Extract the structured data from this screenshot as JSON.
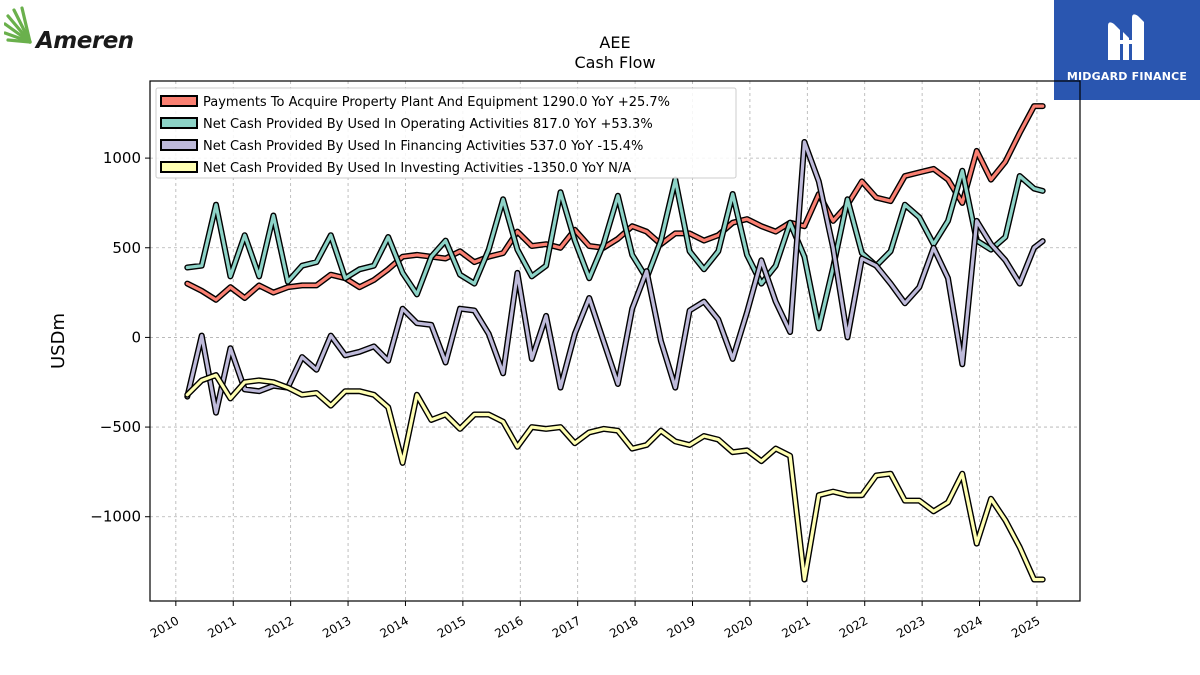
{
  "logos": {
    "left_text": "Ameren",
    "right_text": "MIDGARD FINANCE"
  },
  "chart_data": {
    "type": "line",
    "title": "AEE",
    "subtitle": "Cash Flow",
    "ylabel": "USDm",
    "xlabel": "",
    "ylim": [
      -1470,
      1430
    ],
    "xlim": [
      2009.55,
      2025.75
    ],
    "yticks": [
      -1000,
      -500,
      0,
      500,
      1000
    ],
    "xticks": [
      2010,
      2011,
      2012,
      2013,
      2014,
      2015,
      2016,
      2017,
      2018,
      2019,
      2020,
      2021,
      2022,
      2023,
      2024,
      2025
    ],
    "grid": true,
    "legend_position": "top-left",
    "x": [
      2010.2,
      2010.45,
      2010.7,
      2010.95,
      2011.2,
      2011.45,
      2011.7,
      2011.95,
      2012.2,
      2012.45,
      2012.7,
      2012.95,
      2013.2,
      2013.45,
      2013.7,
      2013.95,
      2014.2,
      2014.45,
      2014.7,
      2014.95,
      2015.2,
      2015.45,
      2015.7,
      2015.95,
      2016.2,
      2016.45,
      2016.7,
      2016.95,
      2017.2,
      2017.45,
      2017.7,
      2017.95,
      2018.2,
      2018.45,
      2018.7,
      2018.95,
      2019.2,
      2019.45,
      2019.7,
      2019.95,
      2020.2,
      2020.45,
      2020.7,
      2020.95,
      2021.2,
      2021.45,
      2021.7,
      2021.95,
      2022.2,
      2022.45,
      2022.7,
      2022.95,
      2023.2,
      2023.45,
      2023.7,
      2023.95,
      2024.2,
      2024.45,
      2024.7,
      2024.95,
      2025.1
    ],
    "series": [
      {
        "name": "Payments To Acquire Property Plant And Equipment",
        "legend": "Payments To Acquire Property Plant And Equipment  1290.0 YoY +25.7%",
        "color": "#fa8072",
        "values": [
          300,
          260,
          210,
          280,
          220,
          290,
          250,
          280,
          290,
          290,
          350,
          330,
          280,
          320,
          380,
          450,
          460,
          450,
          440,
          480,
          420,
          450,
          470,
          590,
          510,
          520,
          500,
          600,
          510,
          500,
          550,
          620,
          590,
          520,
          580,
          580,
          540,
          570,
          640,
          660,
          620,
          590,
          640,
          620,
          800,
          650,
          740,
          870,
          780,
          760,
          900,
          920,
          940,
          880,
          750,
          1040,
          880,
          980,
          1140,
          1290,
          1290
        ]
      },
      {
        "name": "Net Cash Provided By Used In Operating Activities",
        "legend": "Net Cash Provided By Used In Operating Activities  817.0 YoY +53.3%",
        "color": "#8dd3c7",
        "values": [
          390,
          400,
          740,
          340,
          570,
          340,
          680,
          310,
          400,
          420,
          570,
          330,
          380,
          400,
          560,
          360,
          240,
          450,
          540,
          350,
          300,
          490,
          770,
          490,
          340,
          400,
          810,
          540,
          330,
          520,
          790,
          460,
          330,
          540,
          880,
          480,
          380,
          480,
          800,
          460,
          300,
          400,
          640,
          450,
          50,
          390,
          770,
          470,
          400,
          480,
          740,
          670,
          520,
          650,
          930,
          540,
          490,
          560,
          900,
          830,
          817
        ]
      },
      {
        "name": "Net Cash Provided By Used In Financing Activities",
        "legend": "Net Cash Provided By Used In Financing Activities  537.0 YoY -15.4%",
        "color": "#bebada",
        "values": [
          -330,
          10,
          -420,
          -60,
          -290,
          -300,
          -270,
          -280,
          -110,
          -180,
          10,
          -100,
          -80,
          -50,
          -130,
          160,
          80,
          70,
          -140,
          160,
          150,
          20,
          -200,
          360,
          -120,
          120,
          -280,
          20,
          220,
          -20,
          -260,
          160,
          370,
          -20,
          -280,
          150,
          200,
          100,
          -120,
          140,
          430,
          200,
          30,
          1090,
          870,
          500,
          0,
          440,
          400,
          300,
          190,
          280,
          500,
          330,
          -150,
          650,
          520,
          430,
          300,
          500,
          537
        ]
      },
      {
        "name": "Net Cash Provided By Used In Investing Activities",
        "legend": "Net Cash Provided By Used In Investing Activities  -1350.0 YoY N/A",
        "color": "#ffffb3",
        "values": [
          -320,
          -240,
          -210,
          -340,
          -250,
          -240,
          -250,
          -280,
          -320,
          -310,
          -380,
          -300,
          -300,
          -320,
          -390,
          -700,
          -320,
          -460,
          -430,
          -510,
          -430,
          -430,
          -470,
          -610,
          -500,
          -510,
          -500,
          -590,
          -530,
          -510,
          -520,
          -620,
          -600,
          -520,
          -580,
          -600,
          -550,
          -570,
          -640,
          -630,
          -690,
          -620,
          -660,
          -1350,
          -880,
          -860,
          -880,
          -880,
          -770,
          -760,
          -910,
          -910,
          -970,
          -920,
          -760,
          -1150,
          -900,
          -1020,
          -1170,
          -1350,
          -1350
        ]
      }
    ]
  }
}
